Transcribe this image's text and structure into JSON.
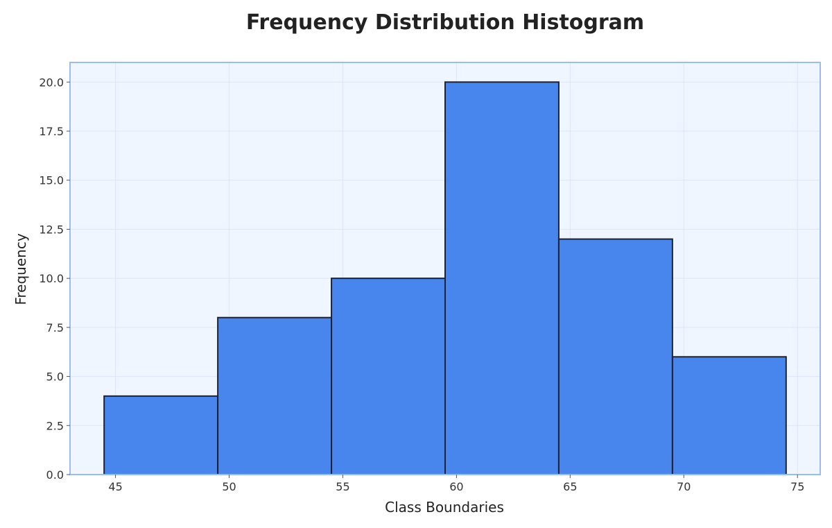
{
  "chart_data": {
    "type": "bar",
    "title": "Frequency Distribution Histogram",
    "xlabel": "Class Boundaries",
    "ylabel": "Frequency",
    "bins": [
      {
        "start": 44.5,
        "end": 49.5,
        "value": 4
      },
      {
        "start": 49.5,
        "end": 54.5,
        "value": 8
      },
      {
        "start": 54.5,
        "end": 59.5,
        "value": 10
      },
      {
        "start": 59.5,
        "end": 64.5,
        "value": 20
      },
      {
        "start": 64.5,
        "end": 69.5,
        "value": 12
      },
      {
        "start": 69.5,
        "end": 74.5,
        "value": 6
      }
    ],
    "xlim": [
      43.0,
      76.0
    ],
    "ylim": [
      0,
      21.0
    ],
    "xticks": [
      45,
      50,
      55,
      60,
      65,
      70,
      75
    ],
    "xtick_labels": [
      "45",
      "50",
      "55",
      "60",
      "65",
      "70",
      "75"
    ],
    "yticks": [
      0,
      2.5,
      5,
      7.5,
      10,
      12.5,
      15,
      17.5,
      20
    ],
    "ytick_labels": [
      "0.0",
      "2.5",
      "5.0",
      "7.5",
      "10.0",
      "12.5",
      "15.0",
      "17.5",
      "20.0"
    ],
    "grid": true,
    "colors": {
      "bar_fill": "#3b7ded",
      "bar_edge": "#1a2233",
      "plot_background": "#f0f6ff",
      "frame": "#9bbcf0",
      "grid": "#dde6f7"
    }
  }
}
